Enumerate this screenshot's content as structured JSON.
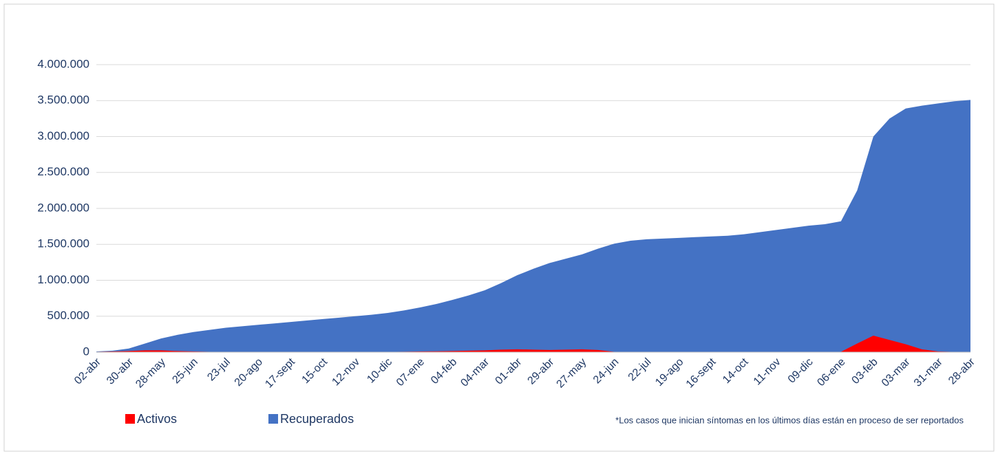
{
  "chart_data": {
    "type": "area",
    "categories": [
      "02-abr",
      null,
      "30-abr",
      null,
      "28-may",
      null,
      "25-jun",
      null,
      "23-jul",
      null,
      "20-ago",
      null,
      "17-sept",
      null,
      "15-oct",
      null,
      "12-nov",
      null,
      "10-dic",
      null,
      "07-ene",
      null,
      "04-feb",
      null,
      "04-mar",
      null,
      "01-abr",
      null,
      "29-abr",
      null,
      "27-may",
      null,
      "24-jun",
      null,
      "22-jul",
      null,
      "19-ago",
      null,
      "16-sept",
      null,
      "14-oct",
      null,
      "11-nov",
      null,
      "09-dic",
      null,
      "06-ene",
      null,
      "03-feb",
      null,
      "03-mar",
      null,
      "31-mar",
      null,
      "28-abr"
    ],
    "series": [
      {
        "name": "Recuperados",
        "color": "#4472c4",
        "values": [
          10000,
          20000,
          50000,
          120000,
          190000,
          240000,
          280000,
          310000,
          340000,
          360000,
          380000,
          400000,
          420000,
          440000,
          460000,
          480000,
          500000,
          520000,
          545000,
          580000,
          622000,
          670000,
          727000,
          790000,
          861000,
          960000,
          1070000,
          1160000,
          1240000,
          1300000,
          1360000,
          1440000,
          1510000,
          1550000,
          1570000,
          1580000,
          1590000,
          1600000,
          1610000,
          1620000,
          1640000,
          1670000,
          1700000,
          1730000,
          1760000,
          1780000,
          1820000,
          2250000,
          3000000,
          3250000,
          3390000,
          3430000,
          3460000,
          3490000,
          3510000
        ]
      },
      {
        "name": "Activos",
        "color": "#ff0000",
        "values": [
          5000,
          10000,
          15000,
          25000,
          25000,
          15000,
          10000,
          5000,
          3000,
          2000,
          2000,
          2000,
          2000,
          2000,
          2000,
          2000,
          2000,
          2000,
          3000,
          6000,
          10000,
          12000,
          15000,
          20000,
          25000,
          35000,
          40000,
          35000,
          30000,
          35000,
          40000,
          30000,
          5000,
          0,
          0,
          0,
          0,
          0,
          0,
          0,
          0,
          0,
          0,
          0,
          0,
          0,
          5000,
          120000,
          230000,
          170000,
          110000,
          40000,
          10000,
          3000,
          2000
        ]
      }
    ],
    "ylim": [
      0,
      4000000
    ],
    "yticks": [
      0,
      {
        "value": 500000,
        "label": "500.000"
      },
      {
        "value": 1000000,
        "label": "1.000.000"
      },
      {
        "value": 1500000,
        "label": "1.500.000"
      },
      {
        "value": 2000000,
        "label": "2.000.000"
      },
      {
        "value": 2500000,
        "label": "2.500.000"
      },
      {
        "value": 3000000,
        "label": "3.000.000"
      },
      {
        "value": 3500000,
        "label": "3.500.000"
      },
      {
        "value": 4000000,
        "label": "4.000.000"
      }
    ],
    "grid": true,
    "legend": [
      "Activos",
      "Recuperados"
    ],
    "note": "*Los casos que inician síntomas en los últimos días están en proceso de ser reportados"
  }
}
